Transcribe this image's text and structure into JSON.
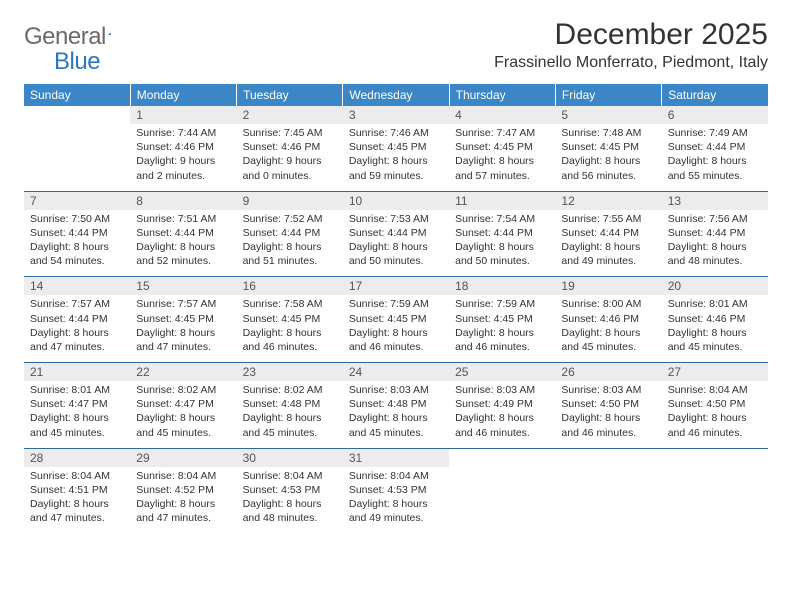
{
  "logo": {
    "textGray": "General",
    "textBlue": "Blue"
  },
  "title": "December 2025",
  "location": "Frassinello Monferrato, Piedmont, Italy",
  "colors": {
    "headerBg": "#3b86c6",
    "headerText": "#ffffff",
    "dayNumBg": "#ececec",
    "dayNumText": "#555555",
    "weekSep": "#2b6aa3",
    "bodyText": "#333333",
    "logoGray": "#6a6a6a",
    "logoBlue": "#2b78c2"
  },
  "dayHeaders": [
    "Sunday",
    "Monday",
    "Tuesday",
    "Wednesday",
    "Thursday",
    "Friday",
    "Saturday"
  ],
  "weeks": [
    [
      {
        "num": "",
        "lines": [
          "",
          "",
          "",
          ""
        ]
      },
      {
        "num": "1",
        "lines": [
          "Sunrise: 7:44 AM",
          "Sunset: 4:46 PM",
          "Daylight: 9 hours",
          "and 2 minutes."
        ]
      },
      {
        "num": "2",
        "lines": [
          "Sunrise: 7:45 AM",
          "Sunset: 4:46 PM",
          "Daylight: 9 hours",
          "and 0 minutes."
        ]
      },
      {
        "num": "3",
        "lines": [
          "Sunrise: 7:46 AM",
          "Sunset: 4:45 PM",
          "Daylight: 8 hours",
          "and 59 minutes."
        ]
      },
      {
        "num": "4",
        "lines": [
          "Sunrise: 7:47 AM",
          "Sunset: 4:45 PM",
          "Daylight: 8 hours",
          "and 57 minutes."
        ]
      },
      {
        "num": "5",
        "lines": [
          "Sunrise: 7:48 AM",
          "Sunset: 4:45 PM",
          "Daylight: 8 hours",
          "and 56 minutes."
        ]
      },
      {
        "num": "6",
        "lines": [
          "Sunrise: 7:49 AM",
          "Sunset: 4:44 PM",
          "Daylight: 8 hours",
          "and 55 minutes."
        ]
      }
    ],
    [
      {
        "num": "7",
        "lines": [
          "Sunrise: 7:50 AM",
          "Sunset: 4:44 PM",
          "Daylight: 8 hours",
          "and 54 minutes."
        ]
      },
      {
        "num": "8",
        "lines": [
          "Sunrise: 7:51 AM",
          "Sunset: 4:44 PM",
          "Daylight: 8 hours",
          "and 52 minutes."
        ]
      },
      {
        "num": "9",
        "lines": [
          "Sunrise: 7:52 AM",
          "Sunset: 4:44 PM",
          "Daylight: 8 hours",
          "and 51 minutes."
        ]
      },
      {
        "num": "10",
        "lines": [
          "Sunrise: 7:53 AM",
          "Sunset: 4:44 PM",
          "Daylight: 8 hours",
          "and 50 minutes."
        ]
      },
      {
        "num": "11",
        "lines": [
          "Sunrise: 7:54 AM",
          "Sunset: 4:44 PM",
          "Daylight: 8 hours",
          "and 50 minutes."
        ]
      },
      {
        "num": "12",
        "lines": [
          "Sunrise: 7:55 AM",
          "Sunset: 4:44 PM",
          "Daylight: 8 hours",
          "and 49 minutes."
        ]
      },
      {
        "num": "13",
        "lines": [
          "Sunrise: 7:56 AM",
          "Sunset: 4:44 PM",
          "Daylight: 8 hours",
          "and 48 minutes."
        ]
      }
    ],
    [
      {
        "num": "14",
        "lines": [
          "Sunrise: 7:57 AM",
          "Sunset: 4:44 PM",
          "Daylight: 8 hours",
          "and 47 minutes."
        ]
      },
      {
        "num": "15",
        "lines": [
          "Sunrise: 7:57 AM",
          "Sunset: 4:45 PM",
          "Daylight: 8 hours",
          "and 47 minutes."
        ]
      },
      {
        "num": "16",
        "lines": [
          "Sunrise: 7:58 AM",
          "Sunset: 4:45 PM",
          "Daylight: 8 hours",
          "and 46 minutes."
        ]
      },
      {
        "num": "17",
        "lines": [
          "Sunrise: 7:59 AM",
          "Sunset: 4:45 PM",
          "Daylight: 8 hours",
          "and 46 minutes."
        ]
      },
      {
        "num": "18",
        "lines": [
          "Sunrise: 7:59 AM",
          "Sunset: 4:45 PM",
          "Daylight: 8 hours",
          "and 46 minutes."
        ]
      },
      {
        "num": "19",
        "lines": [
          "Sunrise: 8:00 AM",
          "Sunset: 4:46 PM",
          "Daylight: 8 hours",
          "and 45 minutes."
        ]
      },
      {
        "num": "20",
        "lines": [
          "Sunrise: 8:01 AM",
          "Sunset: 4:46 PM",
          "Daylight: 8 hours",
          "and 45 minutes."
        ]
      }
    ],
    [
      {
        "num": "21",
        "lines": [
          "Sunrise: 8:01 AM",
          "Sunset: 4:47 PM",
          "Daylight: 8 hours",
          "and 45 minutes."
        ]
      },
      {
        "num": "22",
        "lines": [
          "Sunrise: 8:02 AM",
          "Sunset: 4:47 PM",
          "Daylight: 8 hours",
          "and 45 minutes."
        ]
      },
      {
        "num": "23",
        "lines": [
          "Sunrise: 8:02 AM",
          "Sunset: 4:48 PM",
          "Daylight: 8 hours",
          "and 45 minutes."
        ]
      },
      {
        "num": "24",
        "lines": [
          "Sunrise: 8:03 AM",
          "Sunset: 4:48 PM",
          "Daylight: 8 hours",
          "and 45 minutes."
        ]
      },
      {
        "num": "25",
        "lines": [
          "Sunrise: 8:03 AM",
          "Sunset: 4:49 PM",
          "Daylight: 8 hours",
          "and 46 minutes."
        ]
      },
      {
        "num": "26",
        "lines": [
          "Sunrise: 8:03 AM",
          "Sunset: 4:50 PM",
          "Daylight: 8 hours",
          "and 46 minutes."
        ]
      },
      {
        "num": "27",
        "lines": [
          "Sunrise: 8:04 AM",
          "Sunset: 4:50 PM",
          "Daylight: 8 hours",
          "and 46 minutes."
        ]
      }
    ],
    [
      {
        "num": "28",
        "lines": [
          "Sunrise: 8:04 AM",
          "Sunset: 4:51 PM",
          "Daylight: 8 hours",
          "and 47 minutes."
        ]
      },
      {
        "num": "29",
        "lines": [
          "Sunrise: 8:04 AM",
          "Sunset: 4:52 PM",
          "Daylight: 8 hours",
          "and 47 minutes."
        ]
      },
      {
        "num": "30",
        "lines": [
          "Sunrise: 8:04 AM",
          "Sunset: 4:53 PM",
          "Daylight: 8 hours",
          "and 48 minutes."
        ]
      },
      {
        "num": "31",
        "lines": [
          "Sunrise: 8:04 AM",
          "Sunset: 4:53 PM",
          "Daylight: 8 hours",
          "and 49 minutes."
        ]
      },
      {
        "num": "",
        "lines": [
          "",
          "",
          "",
          ""
        ]
      },
      {
        "num": "",
        "lines": [
          "",
          "",
          "",
          ""
        ]
      },
      {
        "num": "",
        "lines": [
          "",
          "",
          "",
          ""
        ]
      }
    ]
  ]
}
